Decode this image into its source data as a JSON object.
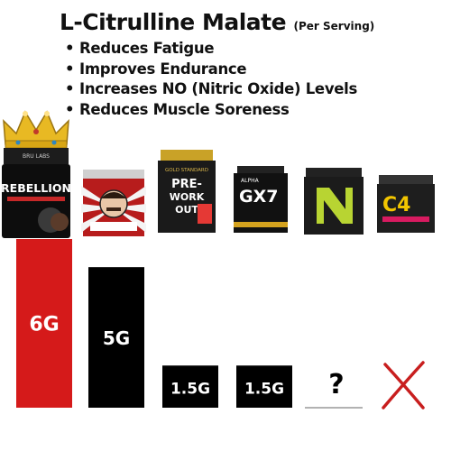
{
  "header": {
    "title": "L-Citrulline Malate",
    "subtitle": "(Per Serving)"
  },
  "benefits": [
    "Reduces Fatigue",
    "Improves Endurance",
    "Increases NO (Nitric Oxide) Levels",
    "Reduces Muscle Soreness"
  ],
  "products": [
    {
      "brand": "BRU LABS",
      "name": "REBELLION"
    },
    {
      "brand": "",
      "name": ""
    },
    {
      "brand": "GOLD STANDARD",
      "name": "PRE-WORKOUT"
    },
    {
      "brand": "ALPHA",
      "name": "GX7"
    },
    {
      "brand": "",
      "name": ""
    },
    {
      "brand": "",
      "name": "C4"
    }
  ],
  "colors": {
    "highlight": "#d51a1a",
    "bar": "#000000",
    "cross": "#c81e1e",
    "label_text": "#ffffff"
  },
  "chart_data": {
    "type": "bar",
    "categories": [
      "REBELLION",
      "",
      "PRE-WORKOUT",
      "GX7",
      "",
      "C4"
    ],
    "values": [
      6,
      5,
      1.5,
      1.5,
      null,
      0
    ],
    "data_labels": [
      "6G",
      "5G",
      "1.5G",
      "1.5G",
      "?",
      ""
    ],
    "unit": "g",
    "ylim": [
      0,
      6
    ],
    "grid": false,
    "legend": "none",
    "highlight_index": 0,
    "markers": [
      {
        "index": 4,
        "symbol": "question-mark"
      },
      {
        "index": 5,
        "symbol": "cross"
      }
    ]
  }
}
